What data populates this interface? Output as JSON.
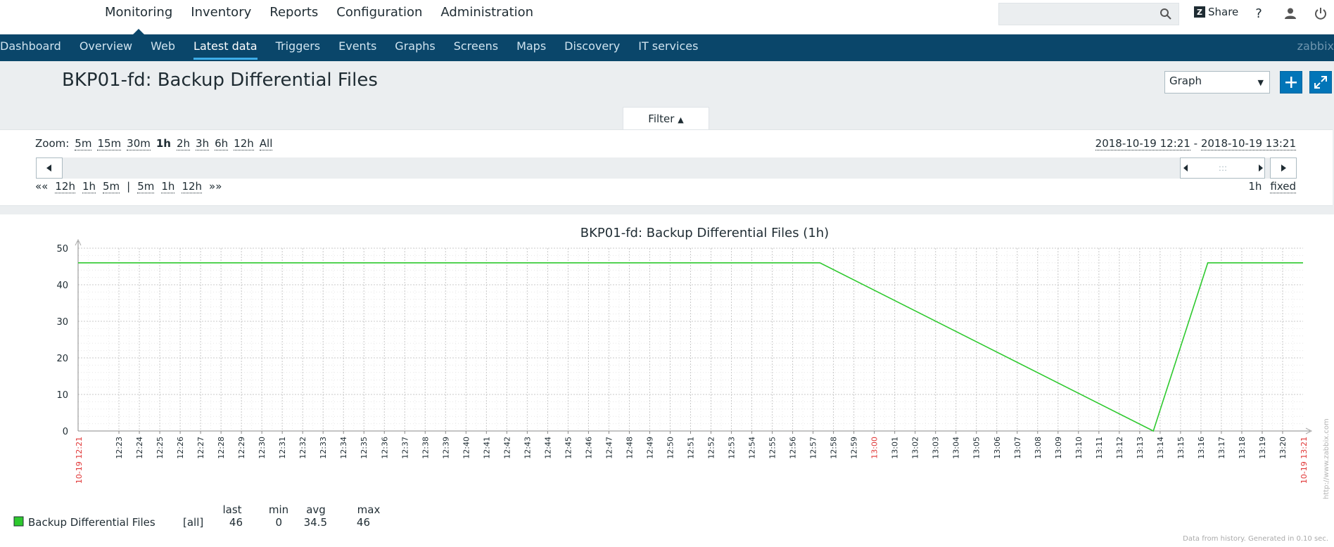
{
  "top_menu": [
    "Monitoring",
    "Inventory",
    "Reports",
    "Configuration",
    "Administration"
  ],
  "share_label": "Share",
  "help_label": "?",
  "sub_menu": [
    "Dashboard",
    "Overview",
    "Web",
    "Latest data",
    "Triggers",
    "Events",
    "Graphs",
    "Screens",
    "Maps",
    "Discovery",
    "IT services"
  ],
  "brand": "zabbix",
  "page_title": "BKP01-fd: Backup Differential Files",
  "view_select": "Graph",
  "filter_label": "Filter",
  "zoom": {
    "label": "Zoom:",
    "options": [
      "5m",
      "15m",
      "30m",
      "1h",
      "2h",
      "3h",
      "6h",
      "12h",
      "All"
    ],
    "active": "1h"
  },
  "range": {
    "from": "2018-10-19 12:21",
    "separator": "-",
    "to": "2018-10-19 13:21"
  },
  "nav_links": [
    "««",
    "12h",
    "1h",
    "5m",
    "|",
    "5m",
    "1h",
    "12h",
    "»»"
  ],
  "period": {
    "value": "1h",
    "mode": "fixed"
  },
  "colors": {
    "series": "#2ec92e",
    "accent": "#0275b8",
    "nav": "#0a466a",
    "red_label": "#e03636"
  },
  "chart_data": {
    "type": "line",
    "title": "BKP01-fd: Backup Differential Files (1h)",
    "ylim": [
      0,
      50
    ],
    "yticks": [
      0,
      10,
      20,
      30,
      40,
      50
    ],
    "x_start_label": "10-19 12:21",
    "x_end_label": "10-19 13:21",
    "x_ticks": [
      "12:23",
      "12:24",
      "12:25",
      "12:26",
      "12:27",
      "12:28",
      "12:29",
      "12:30",
      "12:31",
      "12:32",
      "12:33",
      "12:34",
      "12:35",
      "12:36",
      "12:37",
      "12:38",
      "12:39",
      "12:40",
      "12:41",
      "12:42",
      "12:43",
      "12:44",
      "12:45",
      "12:46",
      "12:47",
      "12:48",
      "12:49",
      "12:50",
      "12:51",
      "12:52",
      "12:53",
      "12:54",
      "12:55",
      "12:56",
      "12:57",
      "12:58",
      "12:59",
      "13:00",
      "13:01",
      "13:02",
      "13:03",
      "13:04",
      "13:05",
      "13:06",
      "13:07",
      "13:08",
      "13:09",
      "13:10",
      "13:11",
      "13:12",
      "13:13",
      "13:14",
      "13:15",
      "13:16",
      "13:17",
      "13:18",
      "13:19",
      "13:20"
    ],
    "highlight_tick": "13:00",
    "series": [
      {
        "name": "Backup Differential Files",
        "x": [
          "12:21",
          "12:57:20",
          "13:13:40",
          "13:16:20",
          "13:21"
        ],
        "y": [
          46,
          46,
          0,
          46,
          46
        ]
      }
    ],
    "legend": {
      "headers": [
        "last",
        "min",
        "avg",
        "max"
      ],
      "rows": [
        {
          "name": "Backup Differential Files",
          "func": "[all]",
          "last": "46",
          "min": "0",
          "avg": "34.5",
          "max": "46"
        }
      ]
    },
    "footer": "Data from history. Generated in 0.10 sec.",
    "watermark": "http://www.zabbix.com"
  }
}
